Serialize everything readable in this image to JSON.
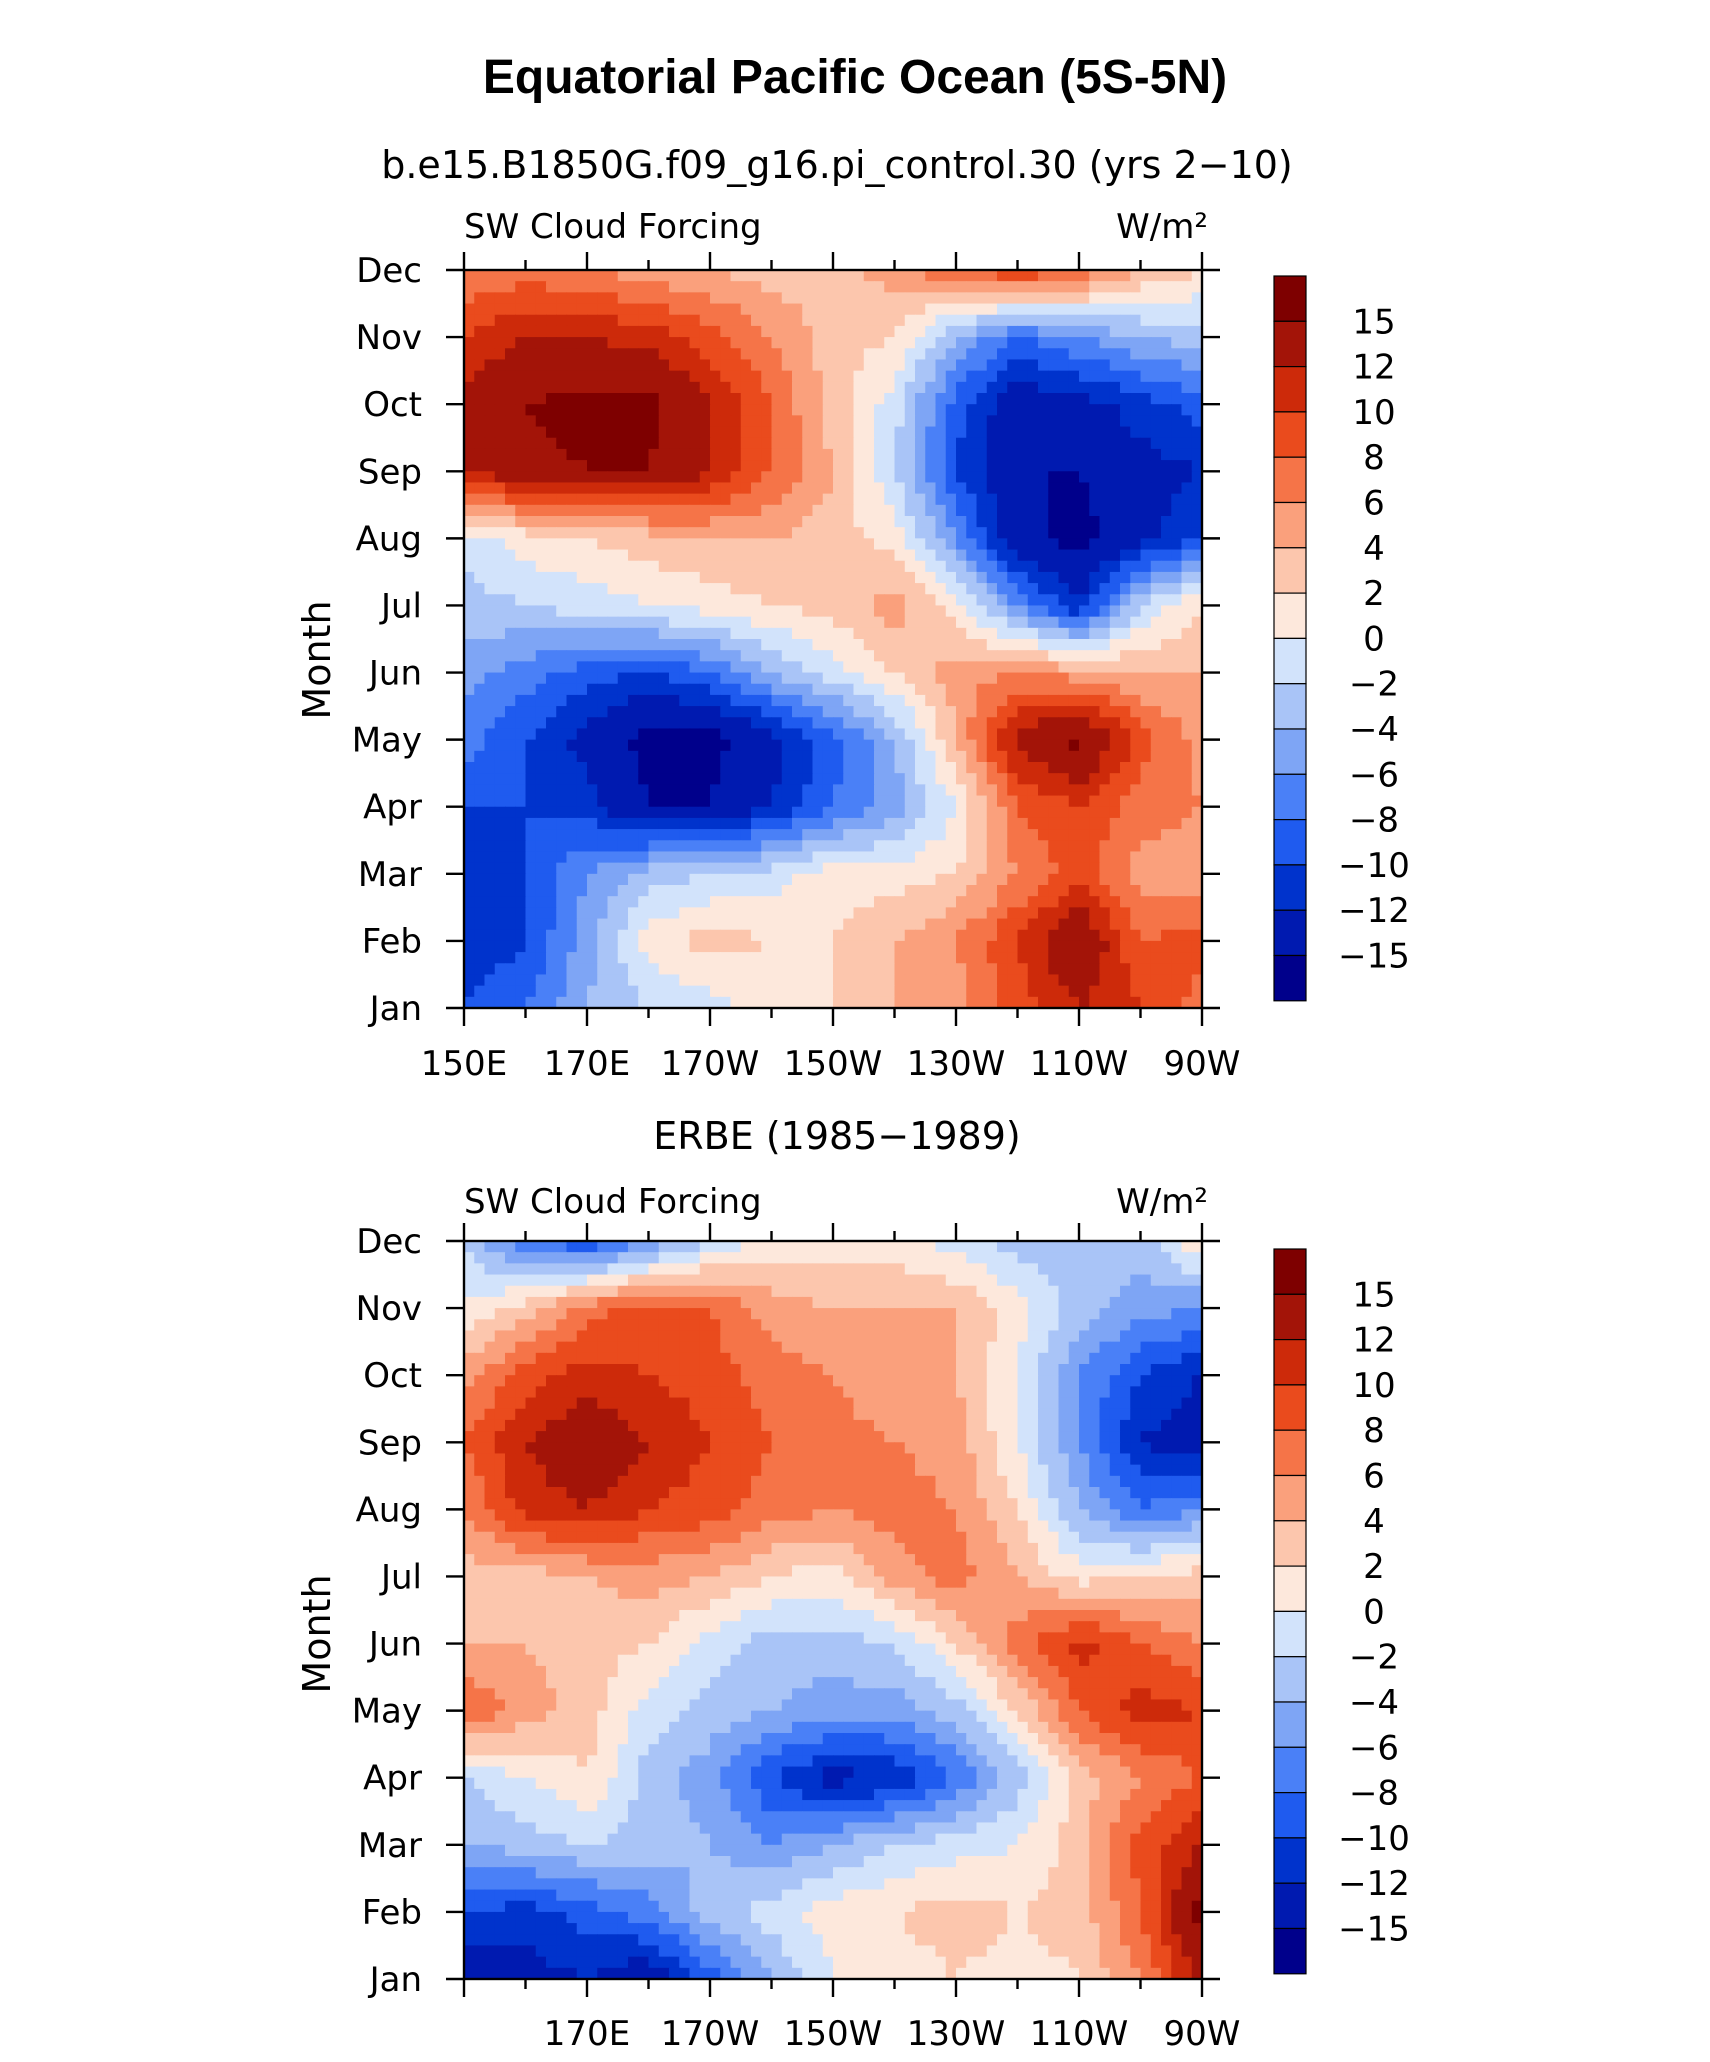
{
  "figure": {
    "title": "Equatorial Pacific Ocean (5S-5N)"
  },
  "colors": {
    "scale": [
      "#00008b",
      "#001ab0",
      "#0033cc",
      "#1f5bef",
      "#4a80f7",
      "#7ea5f5",
      "#a9c4f7",
      "#d2e3fb",
      "#fde8dc",
      "#fcc6ad",
      "#faa07c",
      "#f57448",
      "#ea4b1d",
      "#cd2a0a",
      "#a31408",
      "#7e0000"
    ]
  },
  "chart_data": [
    {
      "type": "heatmap",
      "subtitle": "b.e15.B1850G.f09_g16.pi_control.30 (yrs 2−10)",
      "left_label": "SW Cloud Forcing",
      "right_label": "W/m²",
      "ylabel": "Month",
      "months": [
        "Jan",
        "Feb",
        "Mar",
        "Apr",
        "May",
        "Jun",
        "Jul",
        "Aug",
        "Sep",
        "Oct",
        "Nov",
        "Dec"
      ],
      "x_ticklabels": [
        "150E",
        "170E",
        "170W",
        "150W",
        "130W",
        "110W",
        "90W"
      ],
      "x_range_deg_east": [
        150,
        270
      ],
      "levels": [
        "15",
        "12",
        "10",
        "8",
        "6",
        "4",
        "2",
        "0",
        "−2",
        "−4",
        "−6",
        "−8",
        "−10",
        "−12",
        "−15"
      ],
      "lon_deg_east": [
        150,
        160,
        170,
        180,
        190,
        200,
        210,
        220,
        230,
        240,
        250,
        260,
        270
      ],
      "values": [
        [
          -10,
          -8,
          -4,
          -2,
          -1,
          1,
          2,
          4,
          5,
          9,
          12,
          10,
          7
        ],
        [
          -12,
          -10,
          -5,
          1,
          3,
          2,
          2,
          4,
          6,
          10,
          15,
          8,
          9
        ],
        [
          -12,
          -10,
          -6,
          -3,
          -2,
          -1,
          1,
          1,
          2,
          6,
          9,
          5,
          5
        ],
        [
          -10,
          -10,
          -11,
          -15,
          -15,
          -12,
          -8,
          -5,
          0,
          8,
          10,
          7,
          6
        ],
        [
          -7,
          -10,
          -13,
          -16,
          -16,
          -13,
          -9,
          -4,
          4,
          13,
          16,
          9,
          5
        ],
        [
          -5,
          -7,
          -9,
          -10,
          -8,
          -4,
          -1,
          2,
          5,
          6,
          5,
          4,
          4
        ],
        [
          -3,
          -2,
          -1,
          0,
          1,
          2,
          3,
          5,
          1,
          -6,
          -12,
          -2,
          2
        ],
        [
          -1,
          1,
          2,
          3,
          4,
          4,
          3,
          1,
          -6,
          -14,
          -16,
          -13,
          -10
        ],
        [
          12,
          14,
          15,
          15,
          12,
          8,
          4,
          -2,
          -10,
          -15,
          -15,
          -13,
          -12
        ],
        [
          13,
          15,
          16,
          16,
          12,
          8,
          3,
          -1,
          -9,
          -14,
          -13,
          -11,
          -9
        ],
        [
          10,
          12,
          12,
          11,
          9,
          6,
          3,
          2,
          -4,
          -8,
          -6,
          -4,
          -3
        ],
        [
          6,
          7,
          6,
          5,
          4,
          3,
          3,
          5,
          8,
          10,
          8,
          4,
          2
        ]
      ]
    },
    {
      "type": "heatmap",
      "subtitle": "ERBE (1985−1989)",
      "left_label": "SW Cloud Forcing",
      "right_label": "W/m²",
      "ylabel": "Month",
      "months": [
        "Jan",
        "Feb",
        "Mar",
        "Apr",
        "May",
        "Jun",
        "Jul",
        "Aug",
        "Sep",
        "Oct",
        "Nov",
        "Dec"
      ],
      "x_ticklabels": [
        "170E",
        "170W",
        "150W",
        "130W",
        "110W",
        "90W"
      ],
      "x_range_deg_east": [
        150,
        270
      ],
      "levels": [
        "15",
        "12",
        "10",
        "8",
        "6",
        "4",
        "2",
        "0",
        "−2",
        "−4",
        "−6",
        "−8",
        "−10",
        "−12",
        "−15"
      ],
      "lon_deg_east": [
        150,
        160,
        170,
        180,
        190,
        200,
        210,
        220,
        230,
        240,
        250,
        260,
        270
      ],
      "values": [
        [
          -14,
          -13,
          -12,
          -14,
          -9,
          -4,
          0,
          1,
          2,
          1,
          2,
          6,
          13
        ],
        [
          -10,
          -11,
          -9,
          -7,
          -3,
          -1,
          1,
          2,
          3,
          2,
          3,
          8,
          16
        ],
        [
          -4,
          -3,
          -2,
          -3,
          -4,
          -6,
          -4,
          -2,
          -1,
          0,
          3,
          9,
          12
        ],
        [
          -2,
          0,
          2,
          -3,
          -5,
          -10,
          -13,
          -12,
          -8,
          -3,
          3,
          6,
          8
        ],
        [
          8,
          5,
          3,
          -1,
          -3,
          -4,
          -5,
          -5,
          -3,
          2,
          8,
          11,
          10
        ],
        [
          4,
          4,
          3,
          2,
          -1,
          -3,
          -3,
          -2,
          2,
          7,
          11,
          8,
          6
        ],
        [
          3,
          3,
          4,
          5,
          4,
          2,
          1,
          5,
          7,
          4,
          1,
          2,
          3
        ],
        [
          6,
          11,
          12,
          10,
          9,
          7,
          6,
          7,
          6,
          2,
          -4,
          -8,
          -6
        ],
        [
          8,
          12,
          14,
          12,
          10,
          8,
          7,
          6,
          5,
          0,
          -6,
          -12,
          -14
        ],
        [
          5,
          9,
          11,
          10,
          9,
          7,
          6,
          4,
          4,
          0,
          -6,
          -10,
          -12
        ],
        [
          0,
          3,
          7,
          9,
          8,
          5,
          4,
          4,
          4,
          1,
          -3,
          -5,
          -6
        ],
        [
          -2,
          -8,
          -10,
          -6,
          -2,
          1,
          1,
          1,
          -1,
          -3,
          -4,
          -3,
          2
        ]
      ]
    }
  ]
}
